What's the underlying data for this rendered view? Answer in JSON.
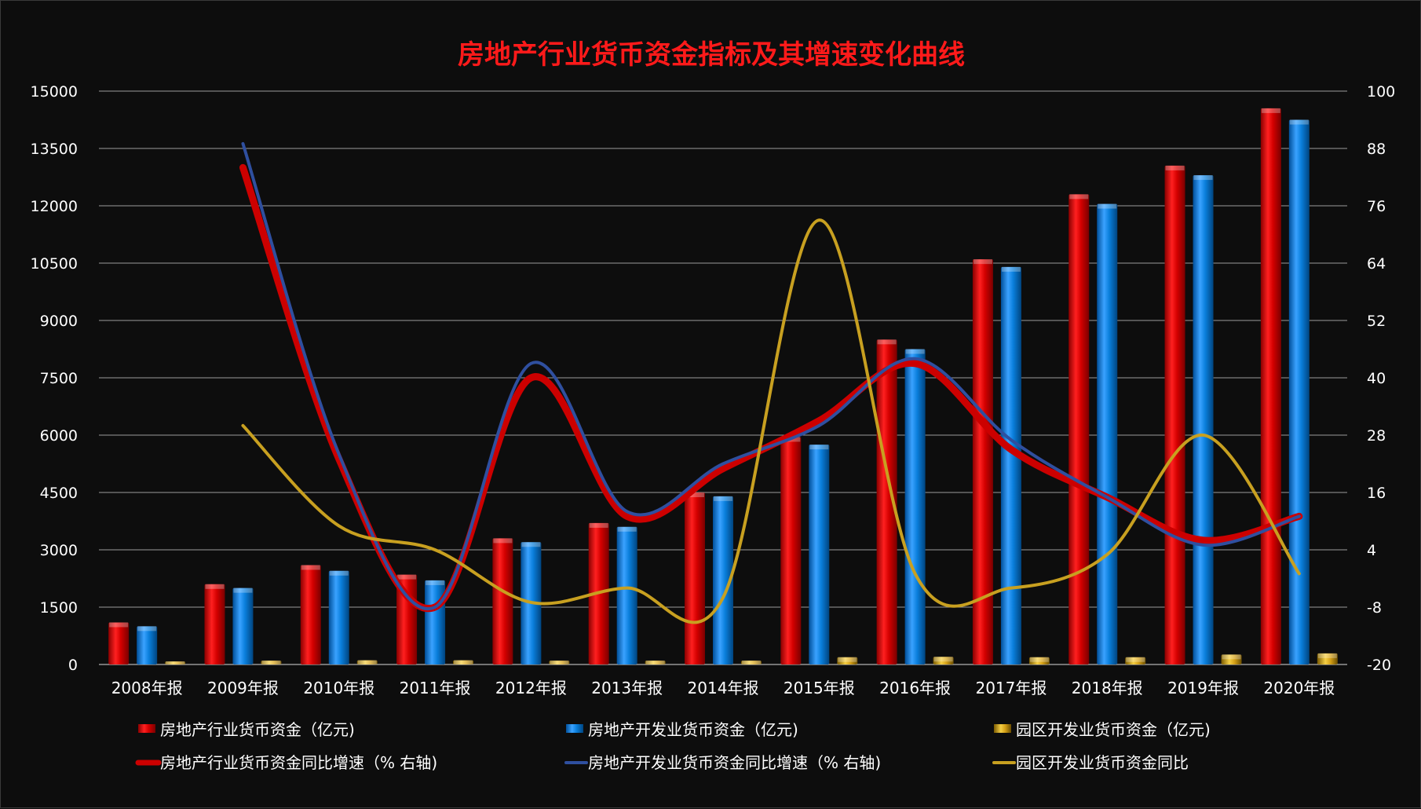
{
  "chart_data": {
    "type": "bar",
    "title": "房地产行业货币资金指标及其增速变化曲线",
    "categories": [
      "2008年报",
      "2009年报",
      "2010年报",
      "2011年报",
      "2012年报",
      "2013年报",
      "2014年报",
      "2015年报",
      "2016年报",
      "2017年报",
      "2018年报",
      "2019年报",
      "2020年报"
    ],
    "ylim_left": [
      0,
      15000
    ],
    "yticks_left": [
      0,
      1500,
      3000,
      4500,
      6000,
      7500,
      9000,
      10500,
      12000,
      13500,
      15000
    ],
    "ylim_right": [
      -20,
      100
    ],
    "yticks_right": [
      -20,
      -8,
      4,
      16,
      28,
      40,
      52,
      64,
      76,
      88,
      100
    ],
    "grid": true,
    "legend_position": "bottom",
    "bar_series": [
      {
        "name": "房地产行业货币资金（亿元)",
        "color": "#e00000",
        "values": [
          1100,
          2100,
          2600,
          2350,
          3300,
          3700,
          4500,
          5950,
          8500,
          10600,
          12300,
          13050,
          14550
        ]
      },
      {
        "name": "房地产开发业货币资金（亿元)",
        "color": "#0a7fdc",
        "values": [
          1000,
          2000,
          2450,
          2200,
          3200,
          3600,
          4400,
          5750,
          8250,
          10400,
          12050,
          12800,
          14250
        ]
      },
      {
        "name": "园区开发业货币资金（亿元)",
        "color": "#d4a017",
        "values": [
          80,
          100,
          110,
          110,
          100,
          100,
          100,
          190,
          200,
          190,
          190,
          260,
          290
        ]
      }
    ],
    "line_series": [
      {
        "name": "房地产行业货币资金同比增速（% 右轴)",
        "color": "#cc0000",
        "values": [
          null,
          84,
          23,
          -8,
          40,
          11,
          21,
          31,
          43,
          25,
          15,
          6,
          11
        ]
      },
      {
        "name": "房地产开发业货币资金同比增速（% 右轴)",
        "color": "#2f4f9f",
        "values": [
          null,
          89,
          24,
          -8,
          43,
          12,
          22,
          30,
          44,
          27,
          15,
          5,
          11
        ]
      },
      {
        "name": "园区开发业货币资金同比",
        "color": "#c8a020",
        "values": [
          null,
          30,
          9,
          4,
          -7,
          -4,
          -6,
          73,
          -1,
          -4,
          3,
          28,
          -1
        ]
      }
    ]
  }
}
